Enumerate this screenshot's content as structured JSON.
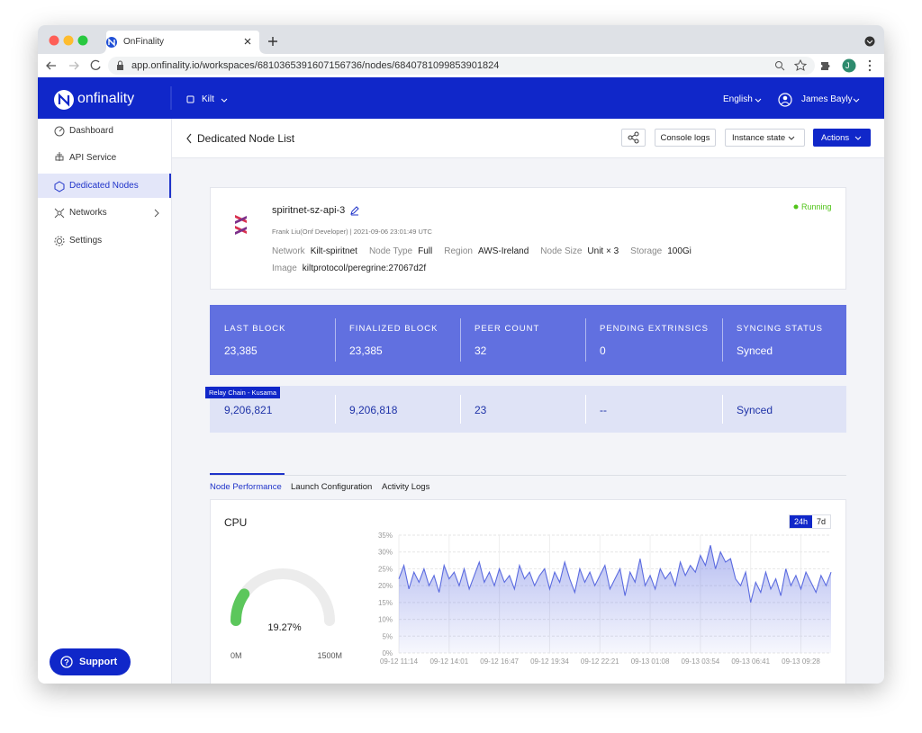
{
  "browser": {
    "tab_title": "OnFinality",
    "url": "app.onfinality.io/workspaces/6810365391607156736/nodes/6840781099853901824",
    "avatar": "J"
  },
  "header": {
    "brand": "onfinality",
    "workspace": "Kilt",
    "language": "English",
    "user": "James Bayly"
  },
  "sidebar": {
    "items": [
      "Dashboard",
      "API Service",
      "Dedicated Nodes",
      "Networks",
      "Settings"
    ],
    "active": 2,
    "support": "Support"
  },
  "toolbar": {
    "back": "Dedicated Node List",
    "buttons": [
      "Console logs",
      "Instance state",
      "Actions"
    ]
  },
  "node": {
    "name": "spiritnet-sz-api-3",
    "status": "Running",
    "meta": "Frank Liu(Onf Developer) | 2021-09-06 23:01:49 UTC",
    "fields": [
      {
        "label": "Network",
        "value": "Kilt-spiritnet"
      },
      {
        "label": "Node Type",
        "value": "Full"
      },
      {
        "label": "Region",
        "value": "AWS-Ireland"
      },
      {
        "label": "Node Size",
        "value": "Unit × 3"
      },
      {
        "label": "Storage",
        "value": "100Gi"
      },
      {
        "label": "Image",
        "value": "kiltprotocol/peregrine:27067d2f"
      }
    ]
  },
  "stats": {
    "headers": [
      "LAST BLOCK",
      "FINALIZED BLOCK",
      "PEER COUNT",
      "PENDING EXTRINSICS",
      "SYNCING STATUS"
    ],
    "values": [
      "23,385",
      "23,385",
      "32",
      "0",
      "Synced"
    ],
    "relay_tag": "Relay Chain - Kusama",
    "relay_values": [
      "9,206,821",
      "9,206,818",
      "23",
      "--",
      "Synced"
    ]
  },
  "tabs": {
    "items": [
      "Node Performance",
      "Launch Configuration",
      "Activity Logs"
    ],
    "active": 0
  },
  "cpu": {
    "title": "CPU",
    "ranges": [
      "24h",
      "7d"
    ],
    "active_range": 0
  },
  "chart_data": [
    {
      "type": "gauge",
      "value": 19.27,
      "value_label": "19.27%",
      "range": [
        0,
        100
      ],
      "min_label": "0M",
      "max_label": "1500M",
      "color": "#5cc75c",
      "track_color": "#ececec"
    },
    {
      "type": "line",
      "color": "#5b6be0",
      "area": true,
      "grid": true,
      "categories": [
        "09-12 11:14",
        null,
        null,
        null,
        null,
        null,
        null,
        null,
        null,
        null,
        "09-12 14:01",
        null,
        null,
        null,
        null,
        null,
        null,
        null,
        null,
        null,
        "09-12 16:47",
        null,
        null,
        null,
        null,
        null,
        null,
        null,
        null,
        null,
        "09-12 19:34",
        null,
        null,
        null,
        null,
        null,
        null,
        null,
        null,
        null,
        "09-12 22:21",
        null,
        null,
        null,
        null,
        null,
        null,
        null,
        null,
        null,
        "09-13 01:08",
        null,
        null,
        null,
        null,
        null,
        null,
        null,
        null,
        null,
        "09-13 03:54",
        null,
        null,
        null,
        null,
        null,
        null,
        null,
        null,
        null,
        "09-13 06:41",
        null,
        null,
        null,
        null,
        null,
        null,
        null,
        null,
        null,
        "09-13 09:28",
        null,
        null,
        null,
        null,
        null,
        null
      ],
      "values": [
        22,
        26,
        19,
        24,
        21,
        25,
        20,
        23,
        18,
        26,
        22,
        24,
        20,
        25,
        19,
        23,
        27,
        21,
        24,
        20,
        25,
        21,
        23,
        19,
        26,
        22,
        24,
        20,
        23,
        25,
        19,
        24,
        21,
        27,
        22,
        18,
        25,
        21,
        24,
        20,
        23,
        26,
        19,
        22,
        25,
        17,
        24,
        21,
        28,
        20,
        23,
        19,
        25,
        22,
        24,
        20,
        27,
        23,
        26,
        24,
        29,
        26,
        32,
        25,
        30,
        27,
        28,
        22,
        20,
        24,
        15,
        21,
        18,
        24,
        19,
        22,
        17,
        25,
        20,
        23,
        19,
        24,
        21,
        18,
        23,
        20,
        24
      ],
      "ylim": [
        0,
        35
      ],
      "yticks": [
        {
          "value": 0,
          "label": "0%"
        },
        {
          "value": 5,
          "label": "5%"
        },
        {
          "value": 10,
          "label": "10%"
        },
        {
          "value": 15,
          "label": "15%"
        },
        {
          "value": 20,
          "label": "20%"
        },
        {
          "value": 25,
          "label": "25%"
        },
        {
          "value": 30,
          "label": "30%"
        },
        {
          "value": 35,
          "label": "35%"
        }
      ]
    }
  ]
}
